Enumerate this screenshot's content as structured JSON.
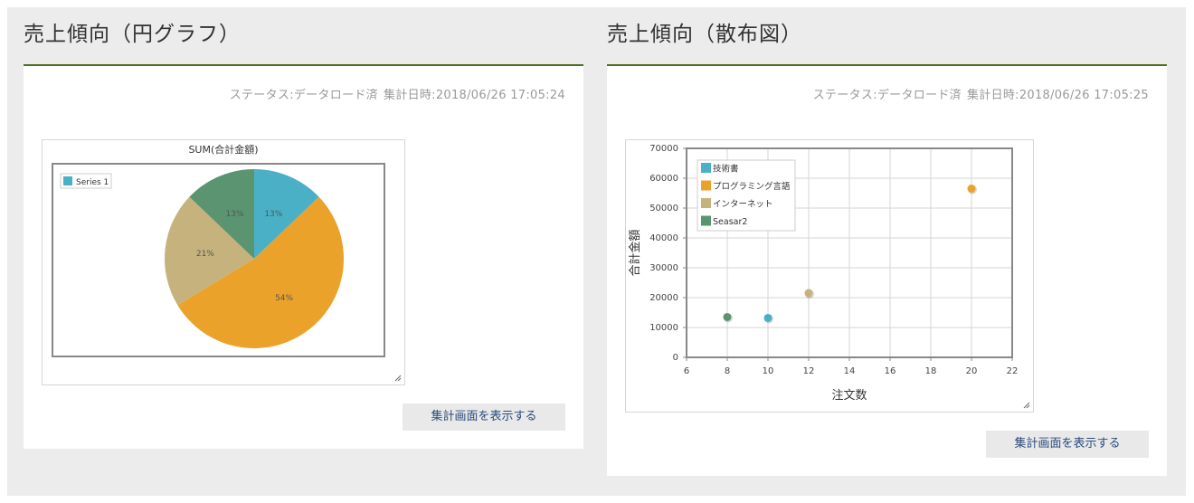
{
  "panels": [
    {
      "title": "売上傾向（円グラフ）",
      "status_label": "ステータス:データロード済",
      "timestamp": "集計日時:2018/06/26 17:05:24",
      "button_label": "集計画面を表示する"
    },
    {
      "title": "売上傾向（散布図）",
      "status_label": "ステータス:データロード済",
      "timestamp": "集計日時:2018/06/26 17:05:25",
      "button_label": "集計画面を表示する"
    }
  ],
  "chart_data": [
    {
      "type": "pie",
      "title": "SUM(合計金額)",
      "series": [
        {
          "name": "Series 1",
          "slices": [
            {
              "label": "13%",
              "value": 13,
              "color": "#4ab0c6"
            },
            {
              "label": "54%",
              "value": 54,
              "color": "#eba22b"
            },
            {
              "label": "21%",
              "value": 21,
              "color": "#c6b27c"
            },
            {
              "label": "13%",
              "value": 13,
              "color": "#5a9470"
            }
          ]
        }
      ],
      "legend_position": "top-left"
    },
    {
      "type": "scatter",
      "xlabel": "注文数",
      "ylabel": "合計金額",
      "xlim": [
        6,
        22
      ],
      "ylim": [
        0,
        70000
      ],
      "x_ticks": [
        "6",
        "8",
        "10",
        "12",
        "14",
        "16",
        "18",
        "20",
        "22"
      ],
      "y_ticks": [
        "0",
        "10000",
        "20000",
        "30000",
        "40000",
        "50000",
        "60000",
        "70000"
      ],
      "grid": true,
      "legend_position": "top-left",
      "series": [
        {
          "name": "技術書",
          "color": "#4ab0c6",
          "points": [
            [
              10,
              13200
            ]
          ]
        },
        {
          "name": "プログラミング言語",
          "color": "#eba22b",
          "points": [
            [
              20,
              56500
            ]
          ]
        },
        {
          "name": "インターネット",
          "color": "#c6b27c",
          "points": [
            [
              12,
              21500
            ]
          ]
        },
        {
          "name": "Seasar2",
          "color": "#5a9470",
          "points": [
            [
              8,
              13500
            ]
          ]
        }
      ]
    }
  ]
}
